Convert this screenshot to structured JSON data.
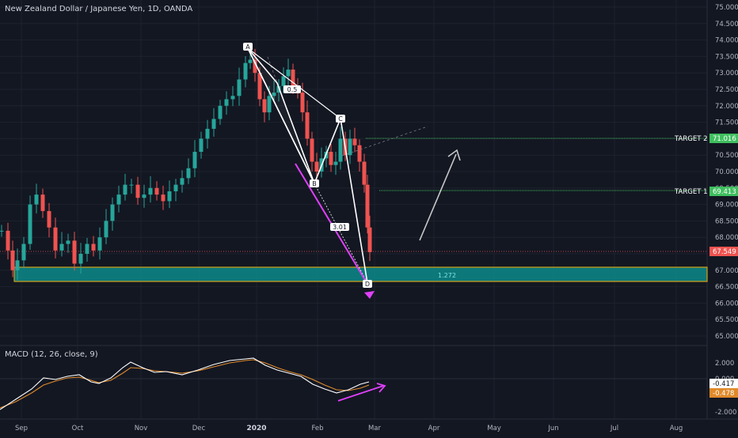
{
  "header": {
    "title": "New Zealand Dollar / Japanese Yen, 1D, OANDA"
  },
  "macd": {
    "label": "MACD (12, 26, close, 9)",
    "value_macd": "-0.417",
    "value_signal": "-0.478"
  },
  "price_axis": {
    "ticks": [
      "75.000",
      "74.500",
      "74.000",
      "73.500",
      "73.000",
      "72.500",
      "72.000",
      "71.500",
      "71.000",
      "70.500",
      "70.000",
      "69.500",
      "69.000",
      "68.500",
      "68.000",
      "67.500",
      "67.000",
      "66.500",
      "66.000",
      "65.500",
      "65.000"
    ],
    "last_price": "67.549",
    "target2_price": "71.016",
    "target1_price": "69.413"
  },
  "macd_axis": {
    "ticks": [
      "2.000",
      "0.000",
      "-2.000"
    ]
  },
  "time_axis": {
    "ticks": [
      "Sep",
      "Oct",
      "Nov",
      "Dec",
      "2020",
      "Feb",
      "Mar",
      "Apr",
      "May",
      "Jun",
      "Jul",
      "Aug"
    ]
  },
  "annotations": {
    "target2_label": "TARGET 2",
    "target1_label": "TARGET 1",
    "point_a": "A",
    "point_b": "B",
    "point_c": "C",
    "point_d": "D",
    "ratio_ab": "0.5",
    "ratio_bc": "3.01",
    "ratio_d": "1.272"
  },
  "colors": {
    "background": "#131722",
    "up_candle": "#26a69a",
    "down_candle": "#ef5350",
    "zone_fill": "#0d8a8a",
    "zone_border": "#d4a017",
    "magenta": "#e040fb",
    "target_line": "#3fbf5f",
    "last_price_tag": "#ef5350",
    "macd_line": "#ffffff",
    "signal_line": "#e08a2a"
  },
  "chart_data": {
    "type": "candlestick",
    "symbol": "NZDJPY",
    "timeframe": "1D",
    "ylim": [
      64.8,
      75.2
    ],
    "x": [
      "2019-08-27",
      "2019-09-03",
      "2019-09-10",
      "2019-09-17",
      "2019-09-24",
      "2019-10-01",
      "2019-10-08",
      "2019-10-15",
      "2019-10-22",
      "2019-10-29",
      "2019-11-05",
      "2019-11-12",
      "2019-11-19",
      "2019-11-26",
      "2019-12-03",
      "2019-12-10",
      "2019-12-17",
      "2019-12-24",
      "2019-12-31",
      "2020-01-07",
      "2020-01-14",
      "2020-01-21",
      "2020-01-28",
      "2020-02-04",
      "2020-02-11",
      "2020-02-18",
      "2020-02-25",
      "2020-02-28"
    ],
    "close": [
      67.2,
      68.8,
      69.1,
      68.4,
      68.0,
      67.4,
      68.3,
      69.5,
      69.4,
      69.7,
      69.3,
      69.0,
      69.3,
      70.0,
      70.8,
      71.4,
      72.2,
      72.6,
      73.4,
      72.2,
      72.6,
      72.9,
      71.2,
      70.3,
      70.9,
      70.0,
      68.3,
      67.55
    ],
    "harmonic_pattern": {
      "A": 73.6,
      "B": 69.9,
      "C": 71.4,
      "D": 66.7,
      "ratios": [
        "0.5",
        "3.01",
        "1.272"
      ]
    },
    "targets": [
      {
        "label": "TARGET 1",
        "price": 69.413
      },
      {
        "label": "TARGET 2",
        "price": 71.016
      }
    ],
    "support_zone": [
      66.65,
      67.1
    ],
    "last_price": 67.549,
    "macd": {
      "params": "12, 26, close, 9",
      "macd": -0.417,
      "signal": -0.478
    }
  }
}
